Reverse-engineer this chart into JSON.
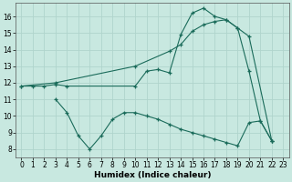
{
  "xlabel": "Humidex (Indice chaleur)",
  "xlim": [
    -0.5,
    23.5
  ],
  "ylim": [
    7.5,
    16.8
  ],
  "yticks": [
    8,
    9,
    10,
    11,
    12,
    13,
    14,
    15,
    16
  ],
  "xticks": [
    0,
    1,
    2,
    3,
    4,
    5,
    6,
    7,
    8,
    9,
    10,
    11,
    12,
    13,
    14,
    15,
    16,
    17,
    18,
    19,
    20,
    21,
    22,
    23
  ],
  "bg_color": "#c8e8e0",
  "grid_color": "#b0d4cc",
  "line_color": "#1a6b5a",
  "line1_x": [
    0,
    1,
    2,
    3,
    4,
    10,
    11,
    12,
    13,
    14,
    15,
    16,
    17,
    18,
    19,
    20,
    21,
    22
  ],
  "line1_y": [
    11.8,
    11.8,
    11.8,
    11.9,
    11.8,
    11.8,
    12.7,
    12.8,
    12.6,
    14.9,
    16.2,
    16.5,
    16.0,
    15.8,
    15.3,
    12.7,
    9.7,
    8.5
  ],
  "line2_x": [
    0,
    3,
    10,
    13,
    14,
    15,
    16,
    17,
    18,
    19,
    20,
    22
  ],
  "line2_y": [
    11.8,
    12.0,
    13.0,
    13.9,
    14.3,
    15.1,
    15.5,
    15.7,
    15.8,
    15.3,
    14.8,
    8.5
  ],
  "line3_x": [
    3,
    4,
    5,
    6,
    7,
    8,
    9,
    10,
    11,
    12,
    13,
    14,
    15,
    16,
    17,
    18,
    19,
    20,
    21,
    22
  ],
  "line3_y": [
    11.0,
    10.2,
    8.8,
    8.0,
    8.8,
    9.8,
    10.2,
    10.2,
    10.0,
    9.8,
    9.5,
    9.2,
    9.0,
    8.8,
    8.6,
    8.4,
    8.2,
    9.6,
    9.7,
    8.5
  ],
  "tick_fontsize": 5.5,
  "xlabel_fontsize": 6.5
}
